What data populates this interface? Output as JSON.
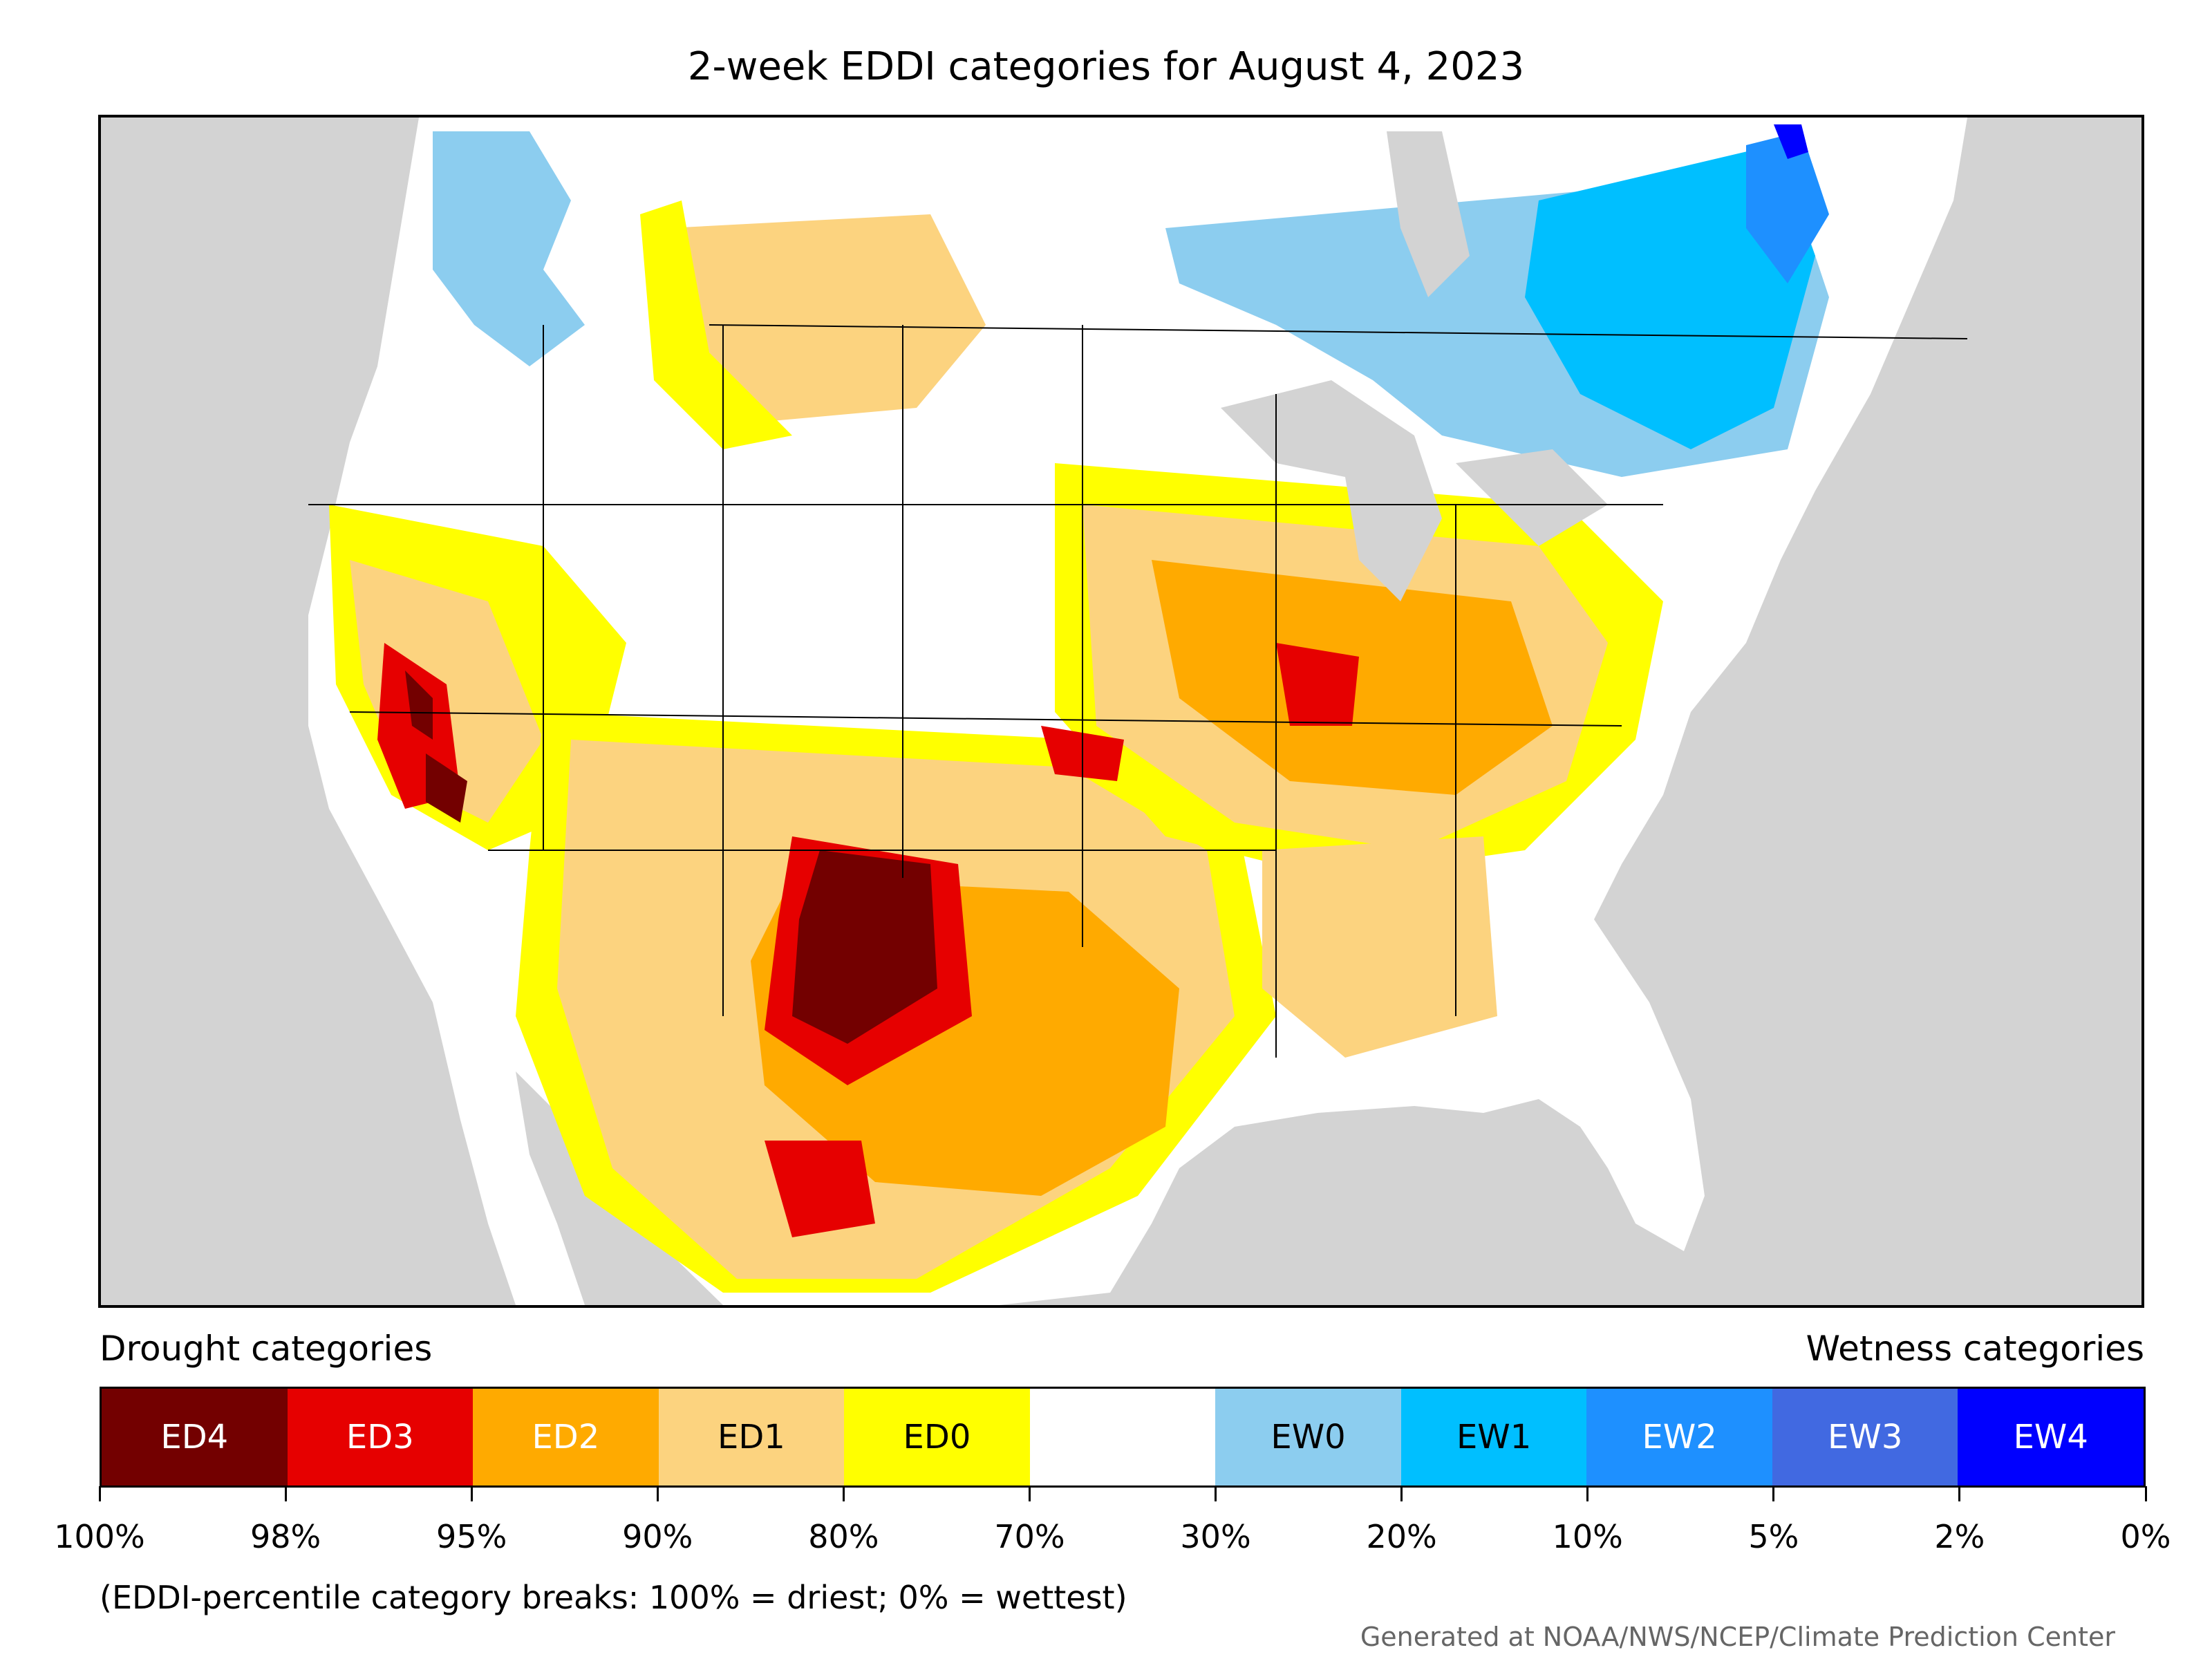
{
  "title": "2-week EDDI categories for August 4, 2023",
  "legend": {
    "drought_label": "Drought categories",
    "wetness_label": "Wetness categories",
    "categories": [
      {
        "label": "ED4",
        "color": "#730000",
        "text_color": "#ffffff"
      },
      {
        "label": "ED3",
        "color": "#e60000",
        "text_color": "#ffffff"
      },
      {
        "label": "ED2",
        "color": "#ffaa00",
        "text_color": "#ffffff"
      },
      {
        "label": "ED1",
        "color": "#fcd37f",
        "text_color": "#000000"
      },
      {
        "label": "ED0",
        "color": "#ffff00",
        "text_color": "#000000"
      },
      {
        "label": "",
        "color": "#ffffff",
        "text_color": "#000000"
      },
      {
        "label": "EW0",
        "color": "#8ccdef",
        "text_color": "#000000"
      },
      {
        "label": "EW1",
        "color": "#00bfff",
        "text_color": "#000000"
      },
      {
        "label": "EW2",
        "color": "#1e90ff",
        "text_color": "#ffffff"
      },
      {
        "label": "EW3",
        "color": "#4169e1",
        "text_color": "#ffffff"
      },
      {
        "label": "EW4",
        "color": "#0000ff",
        "text_color": "#ffffff"
      }
    ],
    "breaks": [
      "100%",
      "98%",
      "95%",
      "90%",
      "80%",
      "70%",
      "30%",
      "20%",
      "10%",
      "5%",
      "2%",
      "0%"
    ]
  },
  "note": "(EDDI-percentile category breaks: 100% = driest; 0% = wettest)",
  "credit": "Generated at NOAA/NWS/NCEP/Climate Prediction Center",
  "colors": {
    "ocean_outside": "#d3d3d3",
    "ED4": "#730000",
    "ED3": "#e60000",
    "ED2": "#ffaa00",
    "ED1": "#fcd37f",
    "ED0": "#ffff00",
    "neutral": "#ffffff",
    "EW0": "#8ccdef",
    "EW1": "#00bfff",
    "EW2": "#1e90ff",
    "EW3": "#4169e1",
    "EW4": "#0000ff"
  }
}
